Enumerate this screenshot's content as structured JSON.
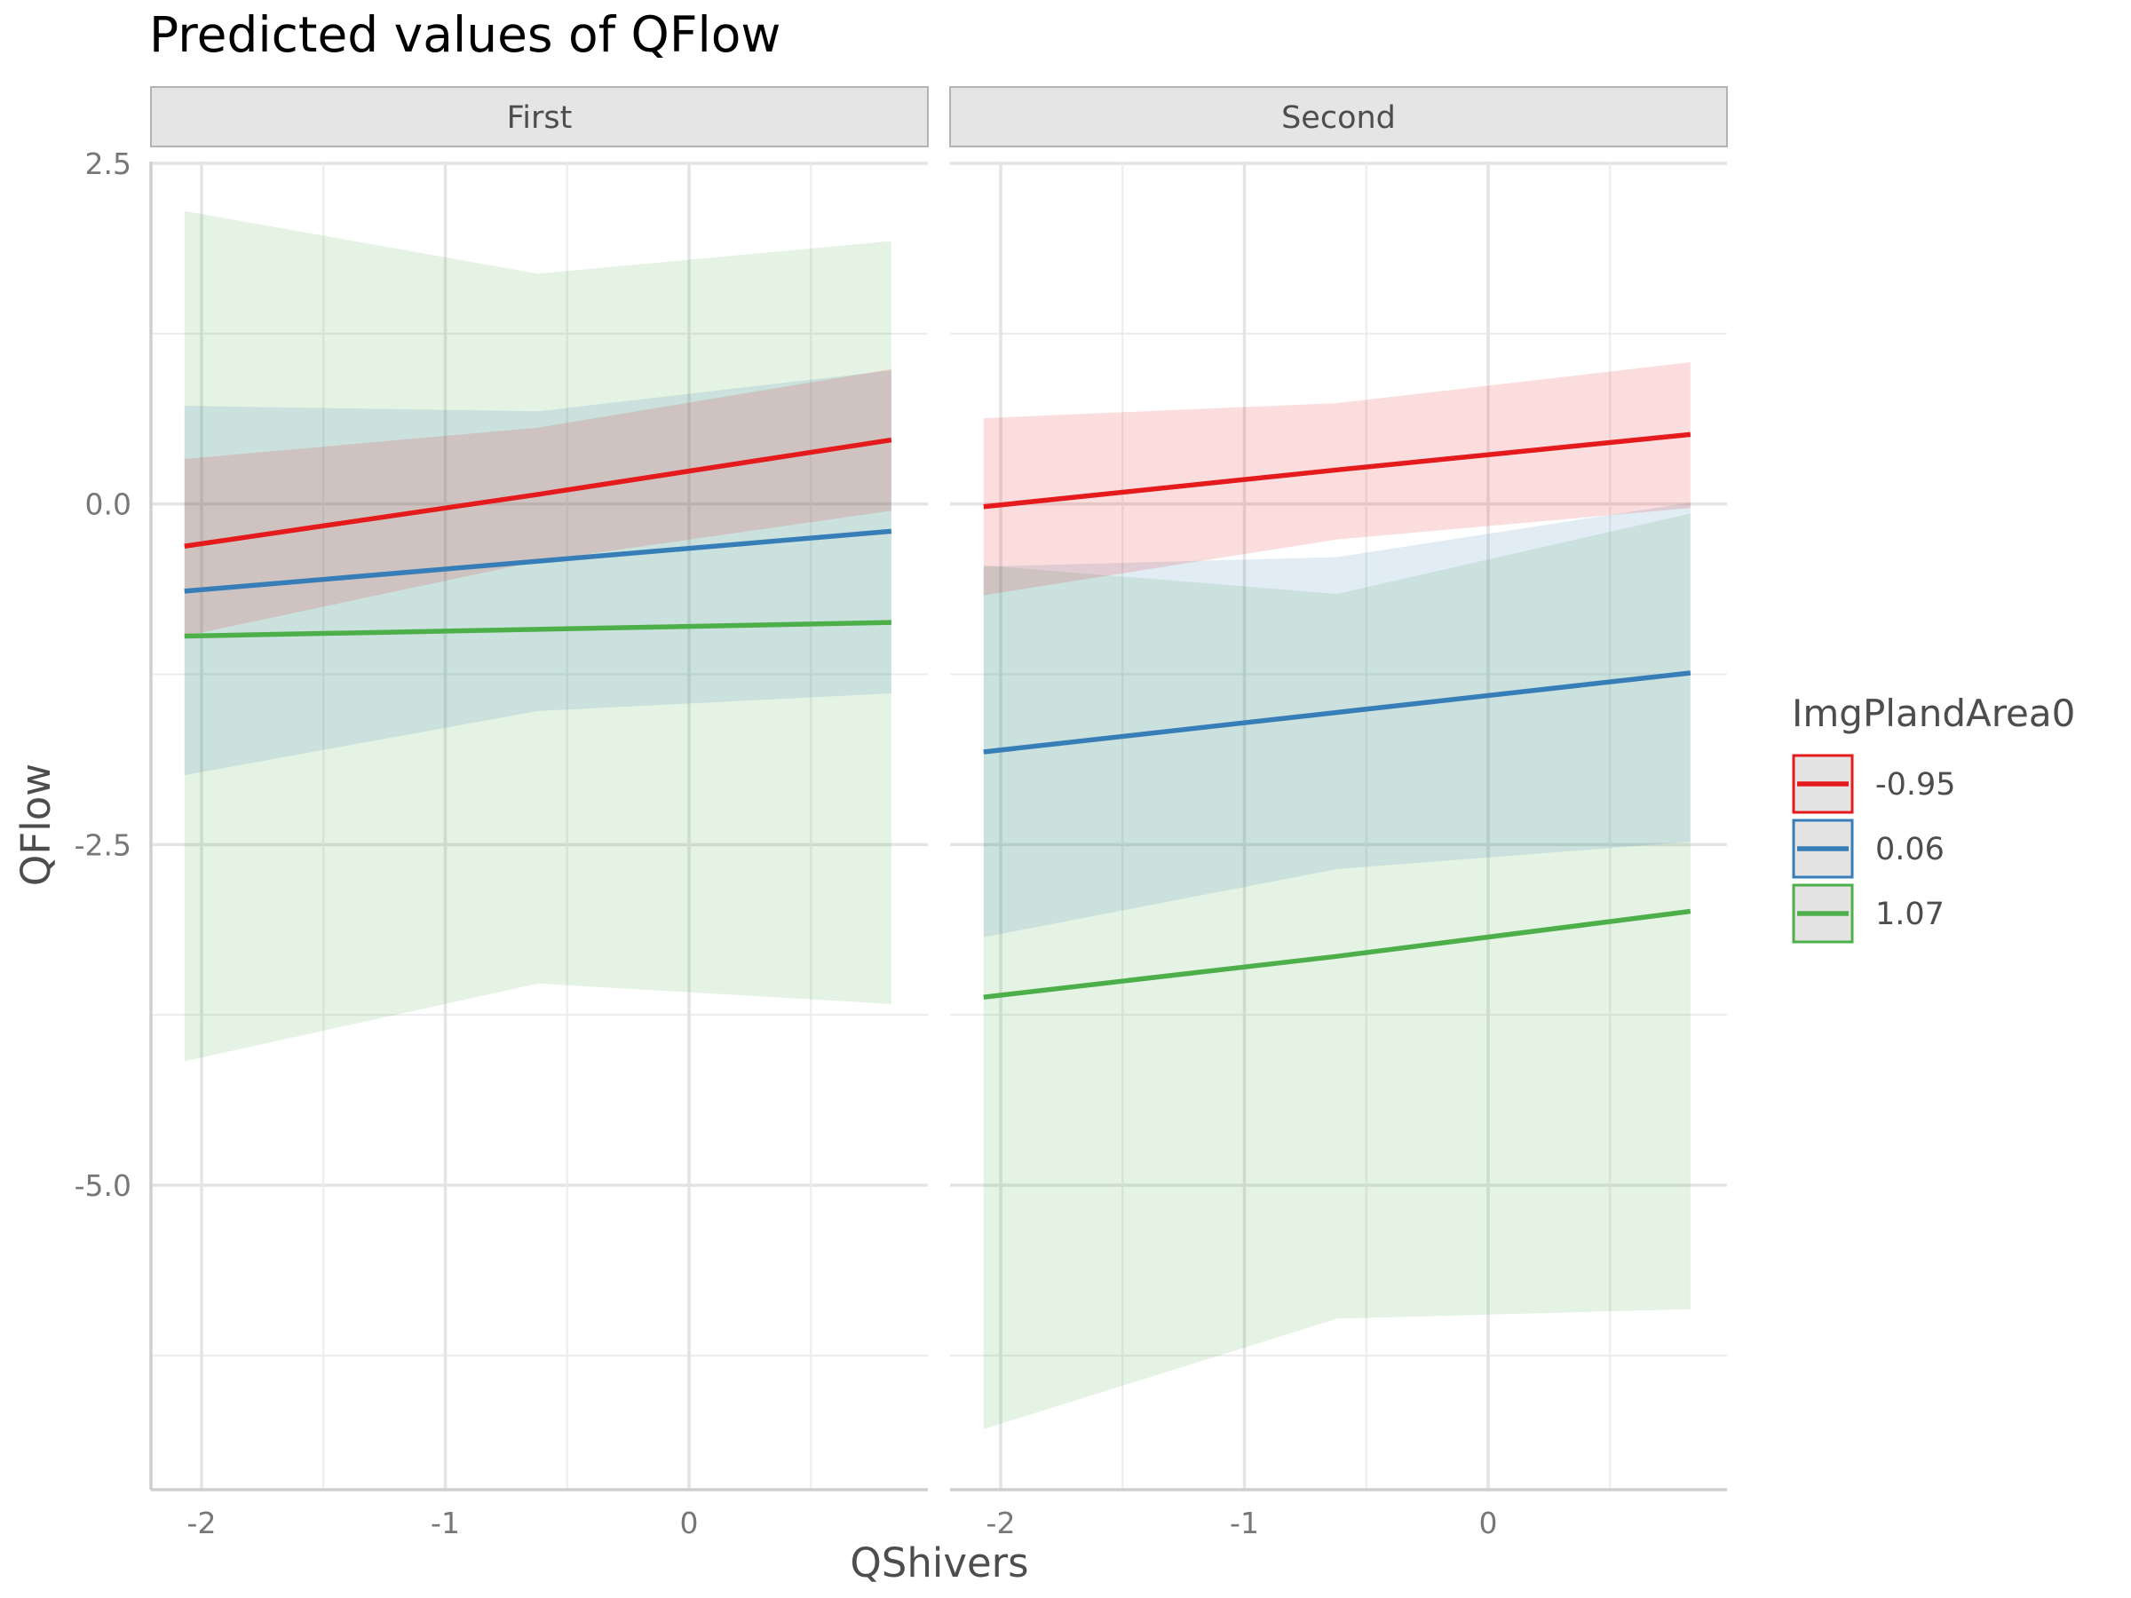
{
  "chart_data": {
    "type": "line",
    "title": "Predicted values of QFlow",
    "xlabel": "QShivers",
    "ylabel": "QFlow",
    "xlim": [
      -2.2,
      1.0
    ],
    "ylim": [
      -7.2,
      2.6
    ],
    "x_ticks": [
      -2,
      -1,
      0
    ],
    "y_ticks": [
      2.5,
      0.0,
      -2.5,
      -5.0
    ],
    "y_tick_labels": [
      "2.5",
      "0.0",
      "-2.5",
      "-5.0"
    ],
    "x_tick_labels": [
      "-2",
      "-1",
      "0"
    ],
    "grid": true,
    "legend": {
      "title": "ImgPlandArea0",
      "placement": "right",
      "labels": [
        "-0.95",
        "0.06",
        "1.07"
      ]
    },
    "colors": [
      "#e41a1c",
      "#377eb8",
      "#4daf4a"
    ],
    "x": [
      -2.07,
      -0.62,
      0.83
    ],
    "panels": [
      {
        "name": "First",
        "series": [
          {
            "name": "-0.95",
            "values": [
              -0.31,
              0.07,
              0.47
            ],
            "lower": [
              -0.97,
              -0.42,
              -0.05
            ],
            "upper": [
              0.33,
              0.56,
              0.99
            ]
          },
          {
            "name": "0.06",
            "values": [
              -0.64,
              -0.42,
              -0.2
            ],
            "lower": [
              -1.99,
              -1.52,
              -1.39
            ],
            "upper": [
              0.72,
              0.68,
              0.98
            ]
          },
          {
            "name": "1.07",
            "values": [
              -0.97,
              -0.92,
              -0.87
            ],
            "lower": [
              -4.09,
              -3.52,
              -3.67
            ],
            "upper": [
              2.15,
              1.69,
              1.93
            ]
          }
        ]
      },
      {
        "name": "Second",
        "series": [
          {
            "name": "-0.95",
            "values": [
              -0.02,
              0.25,
              0.51
            ],
            "lower": [
              -0.67,
              -0.26,
              -0.03
            ],
            "upper": [
              0.63,
              0.74,
              1.04
            ]
          },
          {
            "name": "0.06",
            "values": [
              -1.82,
              -1.53,
              -1.24
            ],
            "lower": [
              -3.18,
              -2.68,
              -2.48
            ],
            "upper": [
              -0.46,
              -0.39,
              0.01
            ]
          },
          {
            "name": "1.07",
            "values": [
              -3.62,
              -3.32,
              -2.99
            ],
            "lower": [
              -6.79,
              -5.98,
              -5.91
            ],
            "upper": [
              -0.45,
              -0.66,
              -0.07
            ]
          }
        ]
      }
    ]
  }
}
